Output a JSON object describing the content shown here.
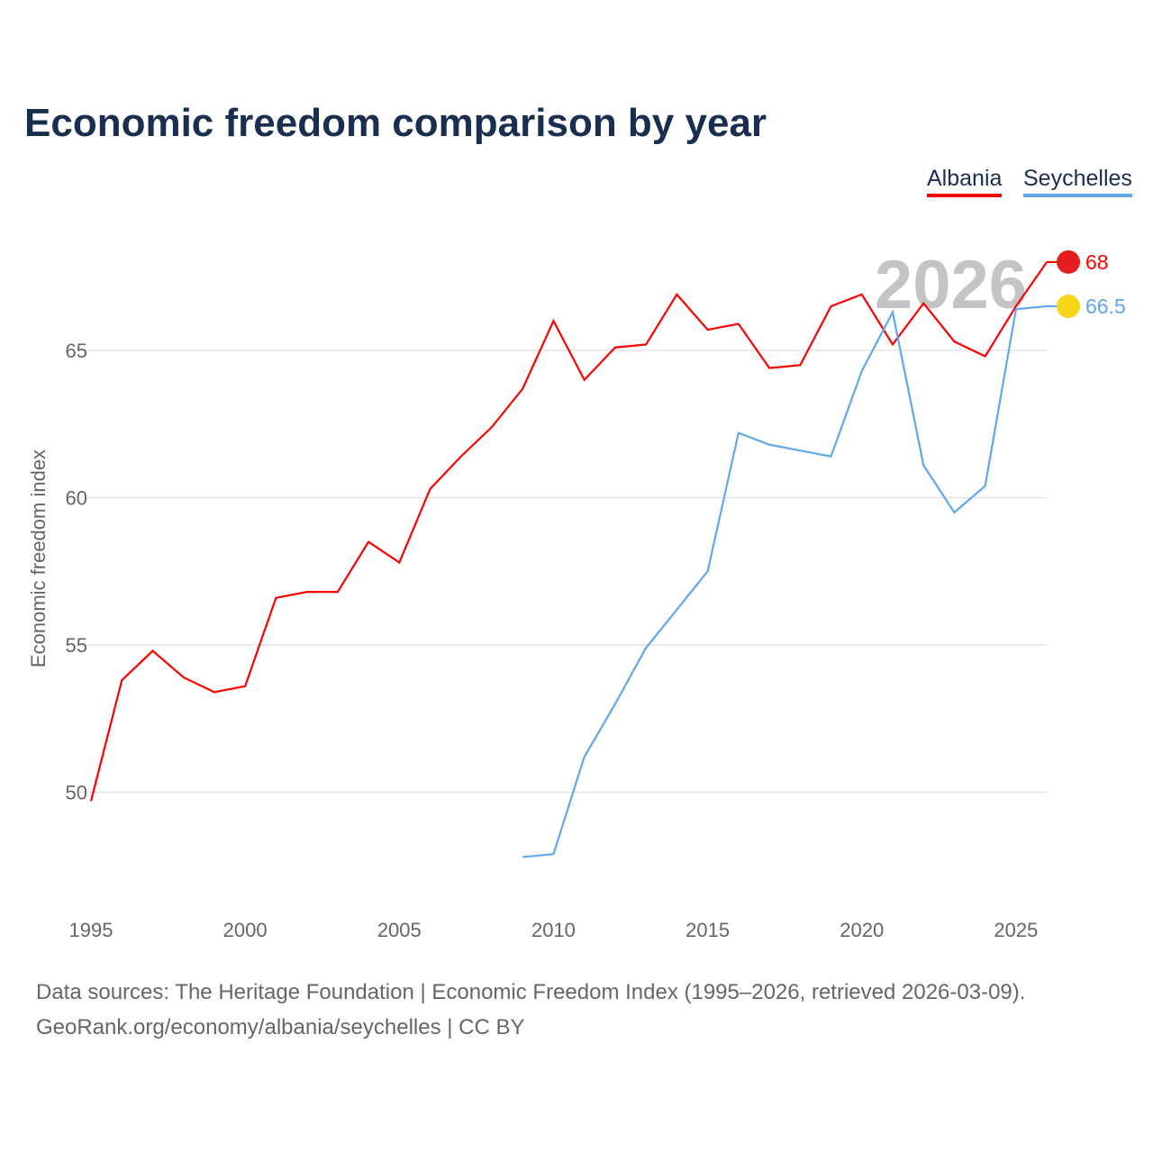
{
  "chart_data": {
    "type": "line",
    "title": "Economic freedom comparison by year",
    "ylabel": "Economic freedom index",
    "xlabel": "",
    "xlim": [
      1995,
      2026
    ],
    "ylim": [
      46.5,
      70
    ],
    "xticks": [
      1995,
      2000,
      2005,
      2010,
      2015,
      2020,
      2025
    ],
    "yticks": [
      50,
      55,
      60,
      65
    ],
    "grid": true,
    "legend_position": "top-right",
    "current_year_label": "2026",
    "series": [
      {
        "name": "Albania",
        "color": "#ff0000",
        "end_label": "68",
        "x": [
          1995,
          1996,
          1997,
          1998,
          1999,
          2000,
          2001,
          2002,
          2003,
          2004,
          2005,
          2006,
          2007,
          2008,
          2009,
          2010,
          2011,
          2012,
          2013,
          2014,
          2015,
          2016,
          2017,
          2018,
          2019,
          2020,
          2021,
          2022,
          2023,
          2024,
          2025,
          2026
        ],
        "values": [
          49.7,
          53.8,
          54.8,
          53.9,
          53.4,
          53.6,
          56.6,
          56.8,
          56.8,
          58.5,
          57.8,
          60.3,
          61.4,
          62.4,
          63.7,
          66.0,
          64.0,
          65.1,
          65.2,
          66.9,
          65.7,
          65.9,
          64.4,
          64.5,
          66.5,
          66.9,
          65.2,
          66.6,
          65.3,
          64.8,
          66.5,
          68.0
        ]
      },
      {
        "name": "Seychelles",
        "color": "#5fa8ee",
        "end_label": "66.5",
        "x": [
          2009,
          2010,
          2011,
          2012,
          2013,
          2014,
          2015,
          2016,
          2017,
          2018,
          2019,
          2020,
          2021,
          2022,
          2023,
          2024,
          2025,
          2026
        ],
        "values": [
          47.8,
          47.9,
          51.2,
          53.0,
          54.9,
          56.2,
          57.5,
          62.2,
          61.8,
          61.6,
          61.4,
          64.3,
          66.3,
          61.1,
          59.5,
          60.4,
          66.4,
          66.5
        ]
      }
    ]
  },
  "source_line1": "Data sources: The Heritage Foundation | Economic Freedom Index (1995–2026, retrieved 2026-03-09).",
  "source_line2": "GeoRank.org/economy/albania/seychelles | CC BY"
}
